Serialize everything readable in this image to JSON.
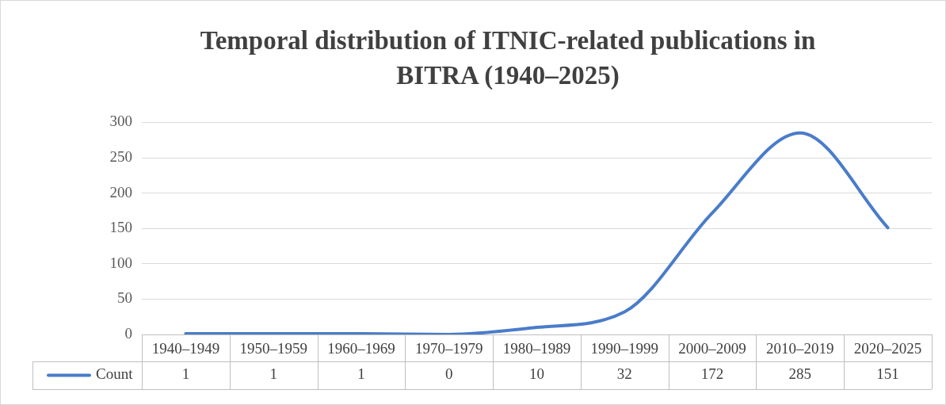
{
  "chart_data": {
    "type": "line",
    "title": "Temporal distribution of ITNIC-related publications in BITRA (1940–2025)",
    "categories": [
      "1940–1949",
      "1950–1959",
      "1960–1969",
      "1970–1979",
      "1980–1989",
      "1990–1999",
      "2000–2009",
      "2010–2019",
      "2020–2025"
    ],
    "series": [
      {
        "name": "Count",
        "color": "#4a7cc9",
        "values": [
          1,
          1,
          1,
          0,
          10,
          32,
          172,
          285,
          151
        ]
      }
    ],
    "ylim": [
      0,
      300
    ],
    "yticks": [
      0,
      50,
      100,
      150,
      200,
      250,
      300
    ],
    "grid": "y",
    "legend": "bottom",
    "data_labels": true,
    "marker": "none",
    "line_style": "solid"
  }
}
